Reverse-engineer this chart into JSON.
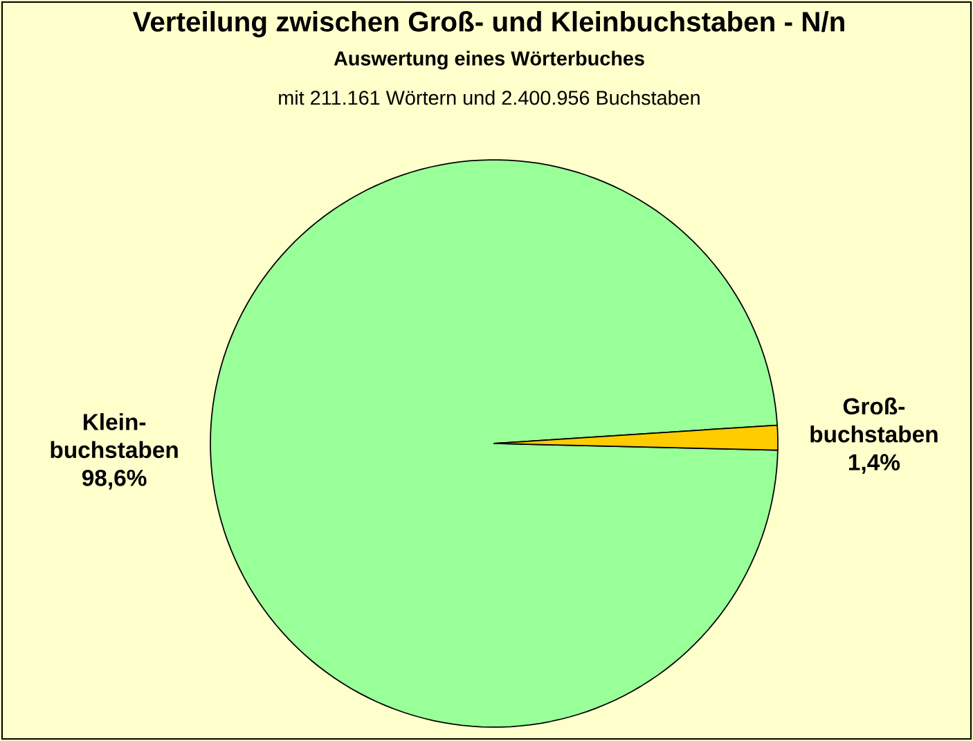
{
  "chart_data": {
    "type": "pie",
    "title": "Verteilung zwischen Groß- und  Kleinbuchstaben - N/n",
    "subtitle": "Auswertung eines Wörterbuches",
    "annotations": [
      "mit 211.161 Wörtern und 2.400.956 Buchstaben"
    ],
    "categories": [
      "Klein-buchstaben",
      "Groß-buchstaben"
    ],
    "values": [
      98.6,
      1.4
    ],
    "colors": [
      "#99ff99",
      "#ffcc00"
    ],
    "value_labels": [
      "98,6%",
      "1,4%"
    ]
  }
}
